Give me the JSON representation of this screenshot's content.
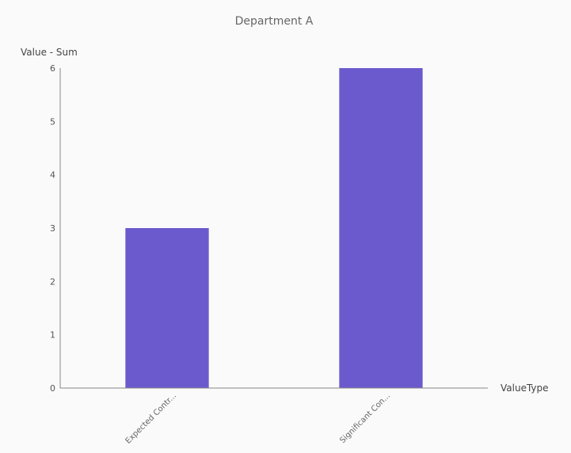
{
  "chart_data": {
    "type": "bar",
    "title": "Department A",
    "xlabel": "ValueType",
    "ylabel": "Value - Sum",
    "categories": [
      "Expected Contr...",
      "Significant Con..."
    ],
    "values": [
      3,
      6
    ],
    "ylim": [
      0,
      6
    ],
    "yticks": [
      0,
      1,
      2,
      3,
      4,
      5,
      6
    ],
    "grid": false,
    "bar_color": "#6b5acd"
  }
}
